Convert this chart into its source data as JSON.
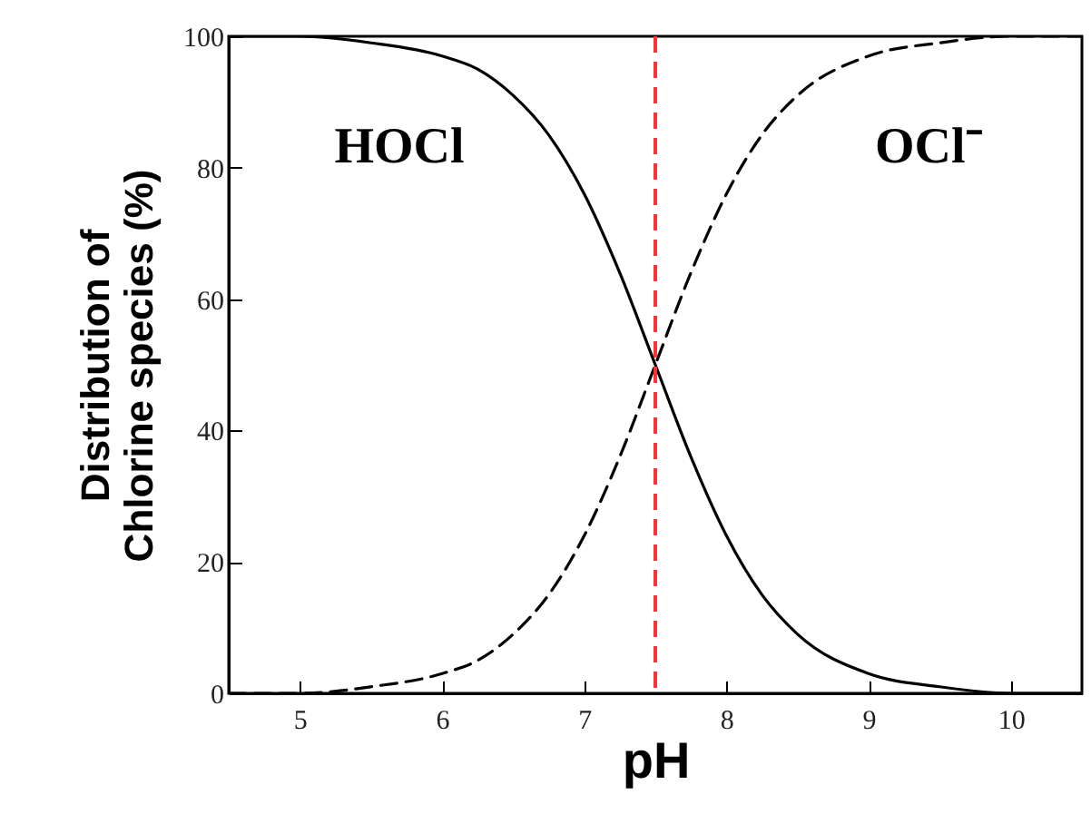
{
  "chart_data": {
    "type": "line",
    "xlabel": "pH",
    "ylabel": "Distribution of Chlorine species (%)",
    "x": [
      4.5,
      5,
      5.5,
      6,
      6.25,
      6.5,
      6.75,
      7,
      7.25,
      7.5,
      7.75,
      8,
      8.25,
      8.5,
      9,
      9.5,
      10,
      10.5
    ],
    "series": [
      {
        "name": "HOCl",
        "color": "#000000",
        "line_style": "solid",
        "values": [
          100,
          100,
          99,
          97,
          95,
          91,
          85,
          76,
          64,
          50,
          36,
          24,
          15,
          9,
          3,
          1,
          0,
          0
        ]
      },
      {
        "name": "OCl⁻",
        "color": "#000000",
        "line_style": "dashed",
        "values": [
          0,
          0,
          1,
          3,
          5,
          9,
          15,
          24,
          36,
          50,
          64,
          76,
          85,
          91,
          97,
          99,
          100,
          100
        ]
      }
    ],
    "xlim": [
      4.5,
      10.5
    ],
    "xticks": [
      5,
      6,
      7,
      8,
      9,
      10
    ],
    "ylim": [
      0,
      100
    ],
    "yticks": [
      0,
      20,
      40,
      60,
      80,
      100
    ],
    "ref_lines": [
      {
        "axis": "x",
        "value": 7.5,
        "color": "#ff3333",
        "line_style": "dashed"
      }
    ],
    "grid": false
  }
}
